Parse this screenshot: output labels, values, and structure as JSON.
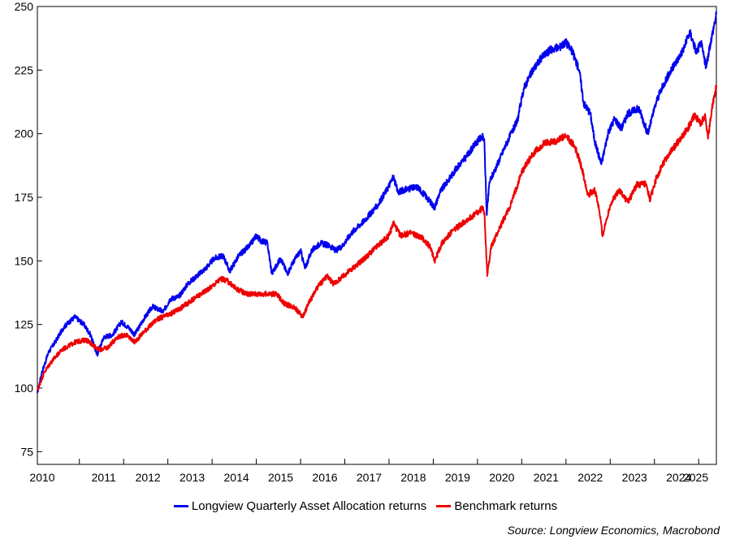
{
  "chart_data": {
    "type": "line",
    "title": "",
    "xlabel": "",
    "ylabel": "",
    "ylim": [
      70,
      250
    ],
    "xlim": [
      2010.0,
      2025.35
    ],
    "y_ticks": [
      75,
      100,
      125,
      150,
      175,
      200,
      225,
      250
    ],
    "x_tick_labels": [
      "2010",
      "2011",
      "2012",
      "2013",
      "2014",
      "2015",
      "2016",
      "2017",
      "2018",
      "2019",
      "2020",
      "2021",
      "2022",
      "2023",
      "2024",
      "2025"
    ],
    "grid": false,
    "legend_position": "bottom",
    "series": [
      {
        "name": "Longview Quarterly Asset Allocation returns",
        "color": "#0000ee",
        "points": [
          [
            2010.0,
            98
          ],
          [
            2010.1,
            106
          ],
          [
            2010.25,
            114
          ],
          [
            2010.4,
            118
          ],
          [
            2010.6,
            124
          ],
          [
            2010.85,
            128
          ],
          [
            2011.05,
            125
          ],
          [
            2011.2,
            121
          ],
          [
            2011.35,
            113
          ],
          [
            2011.5,
            120
          ],
          [
            2011.7,
            121
          ],
          [
            2011.9,
            126
          ],
          [
            2012.05,
            124
          ],
          [
            2012.2,
            121
          ],
          [
            2012.4,
            127
          ],
          [
            2012.6,
            132
          ],
          [
            2012.85,
            130
          ],
          [
            2013.0,
            135
          ],
          [
            2013.2,
            136
          ],
          [
            2013.4,
            141
          ],
          [
            2013.6,
            144
          ],
          [
            2013.8,
            147
          ],
          [
            2014.0,
            151
          ],
          [
            2014.2,
            152
          ],
          [
            2014.35,
            146
          ],
          [
            2014.55,
            152
          ],
          [
            2014.8,
            156
          ],
          [
            2014.95,
            160
          ],
          [
            2015.05,
            158
          ],
          [
            2015.2,
            157
          ],
          [
            2015.3,
            145
          ],
          [
            2015.5,
            151
          ],
          [
            2015.65,
            145
          ],
          [
            2015.8,
            150
          ],
          [
            2015.95,
            154
          ],
          [
            2016.05,
            147
          ],
          [
            2016.2,
            154
          ],
          [
            2016.4,
            157
          ],
          [
            2016.6,
            156
          ],
          [
            2016.75,
            154
          ],
          [
            2016.9,
            156
          ],
          [
            2017.1,
            161
          ],
          [
            2017.4,
            166
          ],
          [
            2017.7,
            172
          ],
          [
            2017.9,
            178
          ],
          [
            2018.05,
            183
          ],
          [
            2018.15,
            177
          ],
          [
            2018.3,
            178
          ],
          [
            2018.6,
            179
          ],
          [
            2018.8,
            175
          ],
          [
            2018.98,
            171
          ],
          [
            2019.1,
            177
          ],
          [
            2019.3,
            182
          ],
          [
            2019.5,
            187
          ],
          [
            2019.7,
            191
          ],
          [
            2019.9,
            196
          ],
          [
            2020.05,
            199
          ],
          [
            2020.1,
            198
          ],
          [
            2020.16,
            168
          ],
          [
            2020.22,
            181
          ],
          [
            2020.4,
            188
          ],
          [
            2020.6,
            196
          ],
          [
            2020.85,
            205
          ],
          [
            2021.0,
            218
          ],
          [
            2021.2,
            225
          ],
          [
            2021.4,
            230
          ],
          [
            2021.6,
            233
          ],
          [
            2021.8,
            234
          ],
          [
            2021.95,
            236
          ],
          [
            2022.1,
            232
          ],
          [
            2022.25,
            225
          ],
          [
            2022.35,
            212
          ],
          [
            2022.5,
            208
          ],
          [
            2022.6,
            197
          ],
          [
            2022.75,
            188
          ],
          [
            2022.9,
            200
          ],
          [
            2023.05,
            206
          ],
          [
            2023.2,
            202
          ],
          [
            2023.35,
            208
          ],
          [
            2023.6,
            210
          ],
          [
            2023.8,
            200
          ],
          [
            2024.0,
            213
          ],
          [
            2024.2,
            221
          ],
          [
            2024.4,
            227
          ],
          [
            2024.6,
            233
          ],
          [
            2024.75,
            240
          ],
          [
            2024.9,
            232
          ],
          [
            2025.0,
            236
          ],
          [
            2025.12,
            226
          ],
          [
            2025.22,
            236
          ],
          [
            2025.35,
            247
          ]
        ]
      },
      {
        "name": "Benchmark returns",
        "color": "#ee0000",
        "points": [
          [
            2010.0,
            99
          ],
          [
            2010.15,
            106
          ],
          [
            2010.3,
            110
          ],
          [
            2010.55,
            115
          ],
          [
            2010.85,
            118
          ],
          [
            2011.1,
            119
          ],
          [
            2011.25,
            117
          ],
          [
            2011.4,
            115
          ],
          [
            2011.6,
            116
          ],
          [
            2011.8,
            120
          ],
          [
            2012.0,
            121
          ],
          [
            2012.2,
            118
          ],
          [
            2012.4,
            122
          ],
          [
            2012.7,
            127
          ],
          [
            2013.0,
            129
          ],
          [
            2013.2,
            131
          ],
          [
            2013.45,
            134
          ],
          [
            2013.7,
            137
          ],
          [
            2013.95,
            140
          ],
          [
            2014.15,
            143
          ],
          [
            2014.3,
            142
          ],
          [
            2014.5,
            139
          ],
          [
            2014.75,
            137
          ],
          [
            2014.95,
            137
          ],
          [
            2015.2,
            137
          ],
          [
            2015.4,
            137
          ],
          [
            2015.6,
            133
          ],
          [
            2015.8,
            132
          ],
          [
            2016.0,
            128
          ],
          [
            2016.15,
            134
          ],
          [
            2016.35,
            140
          ],
          [
            2016.55,
            144
          ],
          [
            2016.7,
            141
          ],
          [
            2016.85,
            143
          ],
          [
            2017.05,
            146
          ],
          [
            2017.4,
            151
          ],
          [
            2017.7,
            156
          ],
          [
            2017.95,
            160
          ],
          [
            2018.05,
            165
          ],
          [
            2018.2,
            160
          ],
          [
            2018.45,
            161
          ],
          [
            2018.7,
            159
          ],
          [
            2018.9,
            155
          ],
          [
            2018.98,
            150
          ],
          [
            2019.15,
            157
          ],
          [
            2019.4,
            162
          ],
          [
            2019.7,
            166
          ],
          [
            2019.95,
            169
          ],
          [
            2020.08,
            171
          ],
          [
            2020.11,
            168
          ],
          [
            2020.17,
            144
          ],
          [
            2020.25,
            155
          ],
          [
            2020.45,
            163
          ],
          [
            2020.7,
            172
          ],
          [
            2020.95,
            185
          ],
          [
            2021.2,
            192
          ],
          [
            2021.45,
            196
          ],
          [
            2021.7,
            197
          ],
          [
            2021.95,
            199
          ],
          [
            2022.15,
            195
          ],
          [
            2022.3,
            187
          ],
          [
            2022.45,
            176
          ],
          [
            2022.6,
            178
          ],
          [
            2022.7,
            170
          ],
          [
            2022.78,
            160
          ],
          [
            2022.95,
            172
          ],
          [
            2023.15,
            178
          ],
          [
            2023.35,
            173
          ],
          [
            2023.55,
            180
          ],
          [
            2023.75,
            180
          ],
          [
            2023.85,
            174
          ],
          [
            2024.0,
            183
          ],
          [
            2024.2,
            190
          ],
          [
            2024.45,
            196
          ],
          [
            2024.7,
            202
          ],
          [
            2024.85,
            207
          ],
          [
            2025.0,
            204
          ],
          [
            2025.1,
            207
          ],
          [
            2025.16,
            198
          ],
          [
            2025.25,
            210
          ],
          [
            2025.35,
            219
          ]
        ]
      }
    ],
    "source": "Source: Longview Economics, Macrobond"
  }
}
